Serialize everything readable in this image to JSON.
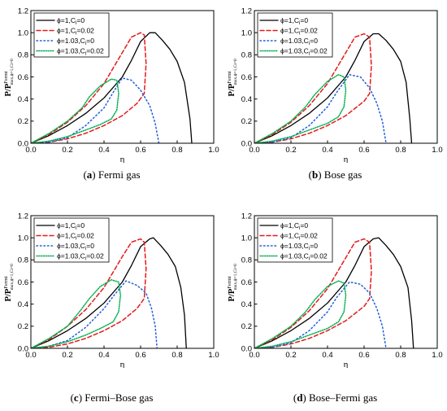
{
  "chart_data": [
    {
      "type": "line",
      "panel_letter": "a",
      "caption_rest": " Fermi gas",
      "xlabel": "η",
      "ylabel_main": "P/P",
      "ylabel_sup": "Fermi",
      "ylabel_sub": "max,ϕ=1,Ci=0",
      "xlim": [
        0,
        1.0
      ],
      "ylim": [
        0,
        1.2
      ],
      "xticks": [
        "0.0",
        "0.2",
        "0.4",
        "0.6",
        "0.8",
        "1.0"
      ],
      "yticks": [
        "0.0",
        "0.2",
        "0.4",
        "0.6",
        "0.8",
        "1.0",
        "1.2"
      ],
      "legend_position": "top-left",
      "series": [
        {
          "name": "ϕ=1,Ci=0",
          "color": "#000000",
          "dash": "solid",
          "x": [
            0,
            0.1,
            0.2,
            0.3,
            0.4,
            0.5,
            0.55,
            0.6,
            0.65,
            0.68,
            0.72,
            0.76,
            0.8,
            0.84,
            0.87,
            0.88
          ],
          "y": [
            0,
            0.07,
            0.16,
            0.27,
            0.41,
            0.6,
            0.75,
            0.92,
            1.0,
            1.0,
            0.93,
            0.85,
            0.74,
            0.55,
            0.22,
            0.0
          ]
        },
        {
          "name": "ϕ=1,Ci=0.02",
          "color": "#e41a1c",
          "dash": "dash",
          "x": [
            0,
            0.1,
            0.2,
            0.3,
            0.4,
            0.45,
            0.5,
            0.55,
            0.6,
            0.62,
            0.63,
            0.62,
            0.58,
            0.5,
            0.4,
            0.3,
            0.2,
            0.1,
            0
          ],
          "y": [
            0,
            0.08,
            0.19,
            0.34,
            0.54,
            0.68,
            0.82,
            0.96,
            1.0,
            0.98,
            0.72,
            0.45,
            0.36,
            0.25,
            0.16,
            0.09,
            0.04,
            0.01,
            0
          ]
        },
        {
          "name": "ϕ=1.03,Ci=0",
          "color": "#1f5fd6",
          "dash": "dot",
          "x": [
            0,
            0.1,
            0.2,
            0.3,
            0.4,
            0.45,
            0.5,
            0.55,
            0.6,
            0.65,
            0.68,
            0.7
          ],
          "y": [
            0,
            0.01,
            0.05,
            0.16,
            0.32,
            0.46,
            0.59,
            0.57,
            0.48,
            0.34,
            0.18,
            0.0
          ]
        },
        {
          "name": "ϕ=1.03,Ci=0.02",
          "color": "#00b050",
          "dash": "dot-dense",
          "x": [
            0.0,
            0.1,
            0.2,
            0.28,
            0.32,
            0.38,
            0.44,
            0.47,
            0.48,
            0.47,
            0.44,
            0.38,
            0.3,
            0.2,
            0.1,
            0.0
          ],
          "y": [
            0.0,
            0.09,
            0.2,
            0.32,
            0.42,
            0.52,
            0.58,
            0.57,
            0.45,
            0.3,
            0.22,
            0.17,
            0.12,
            0.06,
            0.02,
            0.0
          ]
        }
      ]
    },
    {
      "type": "line",
      "panel_letter": "b",
      "caption_rest": " Bose gas",
      "xlabel": "η",
      "ylabel_main": "P/P",
      "ylabel_sup": "Fermi",
      "ylabel_sub": "max,ϕ=1,Ci=0",
      "xlim": [
        0,
        1.0
      ],
      "ylim": [
        0,
        1.2
      ],
      "xticks": [
        "0.0",
        "0.2",
        "0.4",
        "0.6",
        "0.8",
        "1.0"
      ],
      "yticks": [
        "0.0",
        "0.2",
        "0.4",
        "0.6",
        "0.8",
        "1.0",
        "1.2"
      ],
      "legend_position": "top-left",
      "series": [
        {
          "name": "ϕ=1,Ci=0",
          "color": "#000000",
          "dash": "solid",
          "x": [
            0,
            0.1,
            0.2,
            0.3,
            0.4,
            0.5,
            0.55,
            0.6,
            0.65,
            0.68,
            0.72,
            0.76,
            0.8,
            0.83,
            0.85,
            0.86
          ],
          "y": [
            0,
            0.07,
            0.16,
            0.27,
            0.41,
            0.6,
            0.75,
            0.92,
            0.99,
            0.99,
            0.93,
            0.85,
            0.74,
            0.55,
            0.22,
            0.0
          ]
        },
        {
          "name": "ϕ=1,Ci=0.02",
          "color": "#e41a1c",
          "dash": "dash",
          "x": [
            0,
            0.1,
            0.2,
            0.3,
            0.4,
            0.45,
            0.5,
            0.55,
            0.6,
            0.63,
            0.64,
            0.63,
            0.6,
            0.5,
            0.4,
            0.3,
            0.2,
            0.1,
            0
          ],
          "y": [
            0,
            0.08,
            0.19,
            0.34,
            0.54,
            0.68,
            0.82,
            0.96,
            0.99,
            0.96,
            0.7,
            0.45,
            0.38,
            0.25,
            0.16,
            0.09,
            0.04,
            0.01,
            0
          ]
        },
        {
          "name": "ϕ=1.03,Ci=0",
          "color": "#1f5fd6",
          "dash": "dot",
          "x": [
            0,
            0.1,
            0.2,
            0.3,
            0.4,
            0.45,
            0.52,
            0.58,
            0.63,
            0.67,
            0.7,
            0.72
          ],
          "y": [
            0,
            0.01,
            0.05,
            0.16,
            0.33,
            0.46,
            0.62,
            0.6,
            0.5,
            0.36,
            0.2,
            0.0
          ]
        },
        {
          "name": "ϕ=1.03,Ci=0.02",
          "color": "#00b050",
          "dash": "dot-dense",
          "x": [
            0.0,
            0.1,
            0.2,
            0.28,
            0.33,
            0.4,
            0.46,
            0.49,
            0.5,
            0.49,
            0.46,
            0.4,
            0.3,
            0.2,
            0.1,
            0.0
          ],
          "y": [
            0.0,
            0.09,
            0.2,
            0.33,
            0.44,
            0.56,
            0.62,
            0.6,
            0.48,
            0.33,
            0.24,
            0.18,
            0.12,
            0.06,
            0.02,
            0.0
          ]
        }
      ]
    },
    {
      "type": "line",
      "panel_letter": "c",
      "caption_rest": " Fermi–Bose gas",
      "xlabel": "η",
      "ylabel_main": "P/P",
      "ylabel_sup": "Fermi",
      "ylabel_sub": "max,ϕ=1,Ci=0",
      "xlim": [
        0,
        1.0
      ],
      "ylim": [
        0,
        1.2
      ],
      "xticks": [
        "0.0",
        "0.2",
        "0.4",
        "0.6",
        "0.8",
        "1.0"
      ],
      "yticks": [
        "0.0",
        "0.2",
        "0.4",
        "0.6",
        "0.8",
        "1.0",
        "1.2"
      ],
      "legend_position": "top-left",
      "series": [
        {
          "name": "ϕ=1,Ci=0",
          "color": "#000000",
          "dash": "solid",
          "x": [
            0,
            0.1,
            0.2,
            0.3,
            0.4,
            0.5,
            0.55,
            0.6,
            0.65,
            0.67,
            0.71,
            0.75,
            0.79,
            0.82,
            0.84,
            0.85
          ],
          "y": [
            0,
            0.07,
            0.16,
            0.27,
            0.41,
            0.6,
            0.75,
            0.92,
            0.99,
            1.0,
            0.93,
            0.85,
            0.74,
            0.55,
            0.3,
            0.0
          ]
        },
        {
          "name": "ϕ=1,Ci=0.02",
          "color": "#e41a1c",
          "dash": "dash",
          "x": [
            0,
            0.1,
            0.2,
            0.3,
            0.4,
            0.45,
            0.5,
            0.55,
            0.6,
            0.62,
            0.63,
            0.62,
            0.58,
            0.5,
            0.4,
            0.3,
            0.2,
            0.1,
            0
          ],
          "y": [
            0,
            0.08,
            0.2,
            0.35,
            0.55,
            0.69,
            0.83,
            0.96,
            0.99,
            0.96,
            0.72,
            0.45,
            0.36,
            0.25,
            0.16,
            0.09,
            0.04,
            0.01,
            0
          ]
        },
        {
          "name": "ϕ=1.03,Ci=0",
          "color": "#1f5fd6",
          "dash": "dot",
          "x": [
            0,
            0.1,
            0.2,
            0.3,
            0.4,
            0.45,
            0.52,
            0.58,
            0.63,
            0.66,
            0.68,
            0.69
          ],
          "y": [
            0,
            0.02,
            0.07,
            0.19,
            0.36,
            0.47,
            0.61,
            0.57,
            0.5,
            0.36,
            0.2,
            0.0
          ]
        },
        {
          "name": "ϕ=1.03,Ci=0.02",
          "color": "#00b050",
          "dash": "dot-dense",
          "x": [
            0.0,
            0.1,
            0.2,
            0.27,
            0.32,
            0.38,
            0.44,
            0.48,
            0.49,
            0.48,
            0.45,
            0.38,
            0.3,
            0.2,
            0.1,
            0.0
          ],
          "y": [
            0.0,
            0.09,
            0.2,
            0.34,
            0.45,
            0.56,
            0.62,
            0.6,
            0.48,
            0.33,
            0.24,
            0.18,
            0.12,
            0.06,
            0.02,
            0.0
          ]
        }
      ]
    },
    {
      "type": "line",
      "panel_letter": "d",
      "caption_rest": " Bose–Fermi gas",
      "xlabel": "η",
      "ylabel_main": "P/P",
      "ylabel_sup": "Fermi",
      "ylabel_sub": "max,ϕ=1,Ci=0",
      "xlim": [
        0,
        1.0
      ],
      "ylim": [
        0,
        1.2
      ],
      "xticks": [
        "0.0",
        "0.2",
        "0.4",
        "0.6",
        "0.8",
        "1.0"
      ],
      "yticks": [
        "0.0",
        "0.2",
        "0.4",
        "0.6",
        "0.8",
        "1.0",
        "1.2"
      ],
      "legend_position": "top-left",
      "series": [
        {
          "name": "ϕ=1,Ci=0",
          "color": "#000000",
          "dash": "solid",
          "x": [
            0,
            0.1,
            0.2,
            0.3,
            0.4,
            0.5,
            0.55,
            0.6,
            0.65,
            0.68,
            0.72,
            0.76,
            0.8,
            0.84,
            0.86,
            0.87
          ],
          "y": [
            0,
            0.07,
            0.16,
            0.27,
            0.41,
            0.6,
            0.75,
            0.92,
            0.99,
            1.0,
            0.93,
            0.85,
            0.74,
            0.55,
            0.25,
            0.0
          ]
        },
        {
          "name": "ϕ=1,Ci=0.02",
          "color": "#e41a1c",
          "dash": "dash",
          "x": [
            0,
            0.1,
            0.2,
            0.3,
            0.4,
            0.45,
            0.5,
            0.55,
            0.6,
            0.63,
            0.64,
            0.63,
            0.6,
            0.5,
            0.4,
            0.3,
            0.2,
            0.1,
            0
          ],
          "y": [
            0,
            0.08,
            0.19,
            0.34,
            0.54,
            0.68,
            0.82,
            0.96,
            0.99,
            0.96,
            0.7,
            0.45,
            0.38,
            0.25,
            0.16,
            0.09,
            0.04,
            0.01,
            0
          ]
        },
        {
          "name": "ϕ=1.03,Ci=0",
          "color": "#1f5fd6",
          "dash": "dot",
          "x": [
            0,
            0.1,
            0.2,
            0.3,
            0.4,
            0.45,
            0.52,
            0.58,
            0.63,
            0.67,
            0.7,
            0.72
          ],
          "y": [
            0,
            0.01,
            0.05,
            0.16,
            0.33,
            0.46,
            0.6,
            0.58,
            0.5,
            0.36,
            0.2,
            0.0
          ]
        },
        {
          "name": "ϕ=1.03,Ci=0.02",
          "color": "#00b050",
          "dash": "dot-dense",
          "x": [
            0.0,
            0.1,
            0.2,
            0.28,
            0.33,
            0.4,
            0.46,
            0.49,
            0.5,
            0.49,
            0.46,
            0.4,
            0.3,
            0.2,
            0.1,
            0.0
          ],
          "y": [
            0.0,
            0.09,
            0.2,
            0.33,
            0.44,
            0.56,
            0.61,
            0.59,
            0.48,
            0.33,
            0.24,
            0.18,
            0.12,
            0.06,
            0.02,
            0.0
          ]
        }
      ]
    }
  ]
}
